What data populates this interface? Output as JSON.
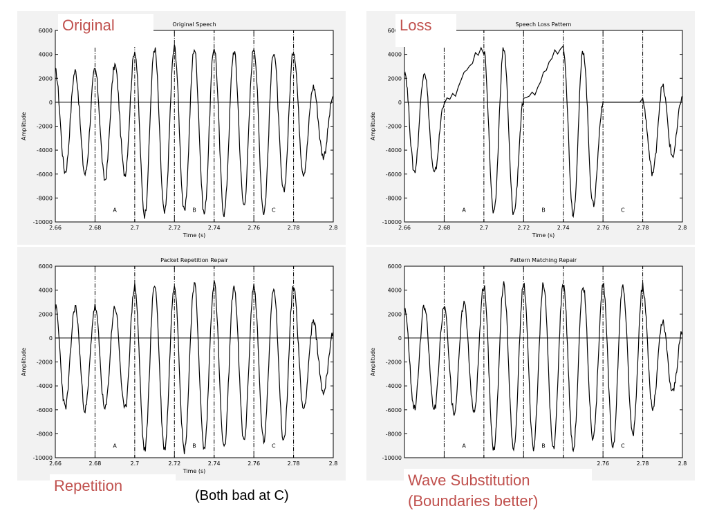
{
  "callouts": {
    "top_left": "Original",
    "top_right": "Loss",
    "bottom_left": "Repetition",
    "bottom_right_line1": "Wave Substitution",
    "bottom_right_line2": "(Boundaries better)",
    "center_caption": "(Both bad at C)"
  },
  "colors": {
    "callout": "#c0504d",
    "trace": "#000000",
    "panel_bg": "#f2f2f2"
  },
  "chart_data": [
    {
      "type": "line",
      "title": "Original Speech",
      "xlabel": "Time (s)",
      "ylabel": "Amplitude",
      "xlim": [
        2.66,
        2.8
      ],
      "ylim": [
        -10000,
        6000
      ],
      "xticks": [
        "2.66",
        "2.68",
        "2.7",
        "2.72",
        "2.74",
        "2.76",
        "2.78",
        "2.8"
      ],
      "yticks": [
        "6000",
        "4000",
        "2000",
        "0",
        "-2000",
        "-4000",
        "-6000",
        "-8000",
        "-10000"
      ],
      "regions": [
        {
          "label": "A",
          "x": [
            2.68,
            2.7
          ],
          "y": [
            -10000,
            6000
          ]
        },
        {
          "label": "B",
          "x": [
            2.72,
            2.74
          ],
          "y": [
            -10000,
            6000
          ]
        },
        {
          "label": "C",
          "x": [
            2.76,
            2.78
          ],
          "y": [
            -10000,
            6000
          ]
        }
      ],
      "waveform": "full",
      "series": [
        {
          "x": [
            2.66,
            2.665,
            2.67,
            2.675,
            2.68,
            2.685,
            2.69,
            2.695,
            2.7,
            2.705,
            2.71,
            2.715,
            2.72,
            2.725,
            2.73,
            2.735,
            2.74,
            2.745,
            2.75,
            2.755,
            2.76,
            2.765,
            2.77,
            2.775,
            2.78,
            2.785,
            2.79,
            2.795,
            2.8
          ],
          "y": [
            2600,
            -5800,
            2600,
            -6000,
            2700,
            -6500,
            3100,
            -6000,
            4300,
            -9400,
            4500,
            -9300,
            4600,
            -9200,
            4500,
            -9300,
            4600,
            -9300,
            4300,
            -8600,
            4600,
            -9200,
            4300,
            -7500,
            4300,
            -5900,
            1300,
            -4500,
            500
          ]
        }
      ]
    },
    {
      "type": "line",
      "title": "Speech Loss Pattern",
      "xlabel": "Time (s)",
      "ylabel": "Amplitude",
      "xlim": [
        2.66,
        2.8
      ],
      "ylim": [
        -10000,
        6000
      ],
      "xticks": [
        "2.66",
        "2.68",
        "2.7",
        "2.72",
        "2.74",
        "2.76",
        "2.78",
        "2.8"
      ],
      "yticks": [
        "6000",
        "4000",
        "2000",
        "0",
        "-2000",
        "-4000",
        "-6000",
        "-8000",
        "-10000"
      ],
      "regions": [
        {
          "label": "A",
          "x": [
            2.68,
            2.7
          ],
          "y": [
            -10000,
            6000
          ]
        },
        {
          "label": "B",
          "x": [
            2.72,
            2.74
          ],
          "y": [
            -10000,
            6000
          ]
        },
        {
          "label": "C",
          "x": [
            2.76,
            2.78
          ],
          "y": [
            -10000,
            6000
          ]
        }
      ],
      "waveform": "loss",
      "series": [
        {
          "x": [
            2.66,
            2.665,
            2.67,
            2.675,
            2.68,
            2.7,
            2.705,
            2.71,
            2.715,
            2.72,
            2.74,
            2.745,
            2.75,
            2.755,
            2.76,
            2.78,
            2.785,
            2.79,
            2.795,
            2.8
          ],
          "y": [
            2600,
            -5800,
            2600,
            -6000,
            0,
            4300,
            -9400,
            4500,
            -9300,
            0,
            4600,
            -9300,
            4300,
            -8600,
            0,
            0,
            -5900,
            1300,
            -4500,
            500
          ]
        }
      ]
    },
    {
      "type": "line",
      "title": "Packet Repetition Repair",
      "xlabel": "Time (s)",
      "ylabel": "Amplitude",
      "xlim": [
        2.66,
        2.8
      ],
      "ylim": [
        -10000,
        6000
      ],
      "xticks": [
        "2.66",
        "2.68",
        "2.7",
        "2.72",
        "2.74",
        "2.76",
        "2.78",
        "2.8"
      ],
      "yticks": [
        "6000",
        "4000",
        "2000",
        "0",
        "-2000",
        "-4000",
        "-6000",
        "-8000",
        "-10000"
      ],
      "regions": [
        {
          "label": "A",
          "x": [
            2.68,
            2.7
          ],
          "y": [
            -10000,
            6000
          ]
        },
        {
          "label": "B",
          "x": [
            2.72,
            2.74
          ],
          "y": [
            -10000,
            6000
          ]
        },
        {
          "label": "C",
          "x": [
            2.76,
            2.78
          ],
          "y": [
            -10000,
            6000
          ]
        }
      ],
      "waveform": "full",
      "series": [
        {
          "x": [
            2.66,
            2.665,
            2.67,
            2.675,
            2.68,
            2.685,
            2.69,
            2.695,
            2.7,
            2.705,
            2.71,
            2.715,
            2.72,
            2.725,
            2.73,
            2.735,
            2.74,
            2.745,
            2.75,
            2.755,
            2.76,
            2.765,
            2.77,
            2.775,
            2.78,
            2.785,
            2.79,
            2.795,
            2.8
          ],
          "y": [
            2600,
            -5800,
            2600,
            -6000,
            2600,
            -6000,
            2600,
            -6000,
            4300,
            -9400,
            4500,
            -9300,
            4500,
            -9400,
            4500,
            -9300,
            4600,
            -9300,
            4300,
            -8600,
            4300,
            -8600,
            4300,
            -8600,
            4300,
            -5900,
            1300,
            -4500,
            500
          ]
        }
      ]
    },
    {
      "type": "line",
      "title": "Pattern Matching Repair",
      "xlabel": "",
      "ylabel": "Amplitude",
      "xlim": [
        2.66,
        2.8
      ],
      "ylim": [
        -10000,
        6000
      ],
      "xticks": [
        "",
        "",
        "",
        "",
        "",
        "2.76",
        "2.78",
        "2.8"
      ],
      "yticks": [
        "6000",
        "4000",
        "2000",
        "0",
        "-2000",
        "-4000",
        "-6000",
        "-8000",
        "-10000"
      ],
      "regions": [
        {
          "label": "A",
          "x": [
            2.68,
            2.7
          ],
          "y": [
            -10000,
            6000
          ]
        },
        {
          "label": "B",
          "x": [
            2.72,
            2.74
          ],
          "y": [
            -10000,
            6000
          ]
        },
        {
          "label": "C",
          "x": [
            2.76,
            2.78
          ],
          "y": [
            -10000,
            6000
          ]
        }
      ],
      "waveform": "full",
      "series": [
        {
          "x": [
            2.66,
            2.665,
            2.67,
            2.675,
            2.68,
            2.685,
            2.69,
            2.695,
            2.7,
            2.705,
            2.71,
            2.715,
            2.72,
            2.725,
            2.73,
            2.735,
            2.74,
            2.745,
            2.75,
            2.755,
            2.76,
            2.765,
            2.77,
            2.775,
            2.78,
            2.785,
            2.79,
            2.795,
            2.8
          ],
          "y": [
            2600,
            -5800,
            2600,
            -6000,
            2600,
            -6200,
            3000,
            -6200,
            4300,
            -9400,
            4500,
            -9300,
            4500,
            -9200,
            4500,
            -9300,
            4600,
            -9300,
            4300,
            -8600,
            4400,
            -9000,
            4300,
            -8000,
            4300,
            -5900,
            1300,
            -4500,
            500
          ]
        }
      ]
    }
  ]
}
